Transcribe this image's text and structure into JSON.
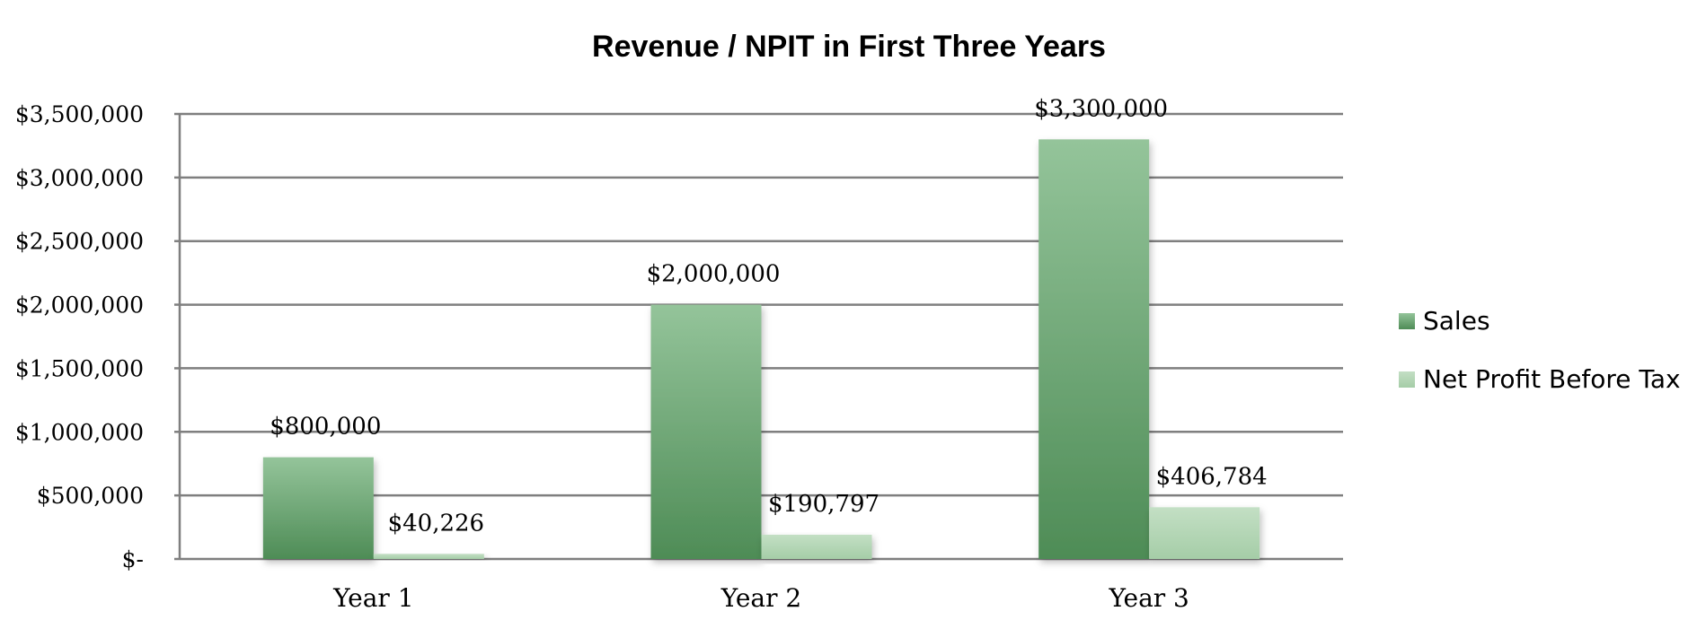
{
  "chart_data": {
    "type": "bar",
    "title": "Revenue / NPIT in First Three Years",
    "categories": [
      "Year 1",
      "Year 2",
      "Year 3"
    ],
    "series": [
      {
        "name": "Sales",
        "values": [
          800000,
          2000000,
          3300000
        ],
        "labels": [
          "$800,000",
          "$2,000,000",
          "$3,300,000"
        ],
        "color_top": "#94c49a",
        "color_bottom": "#4e8c56"
      },
      {
        "name": "Net Profit Before Tax",
        "values": [
          40226,
          190797,
          406784
        ],
        "labels": [
          "$40,226",
          "$190,797",
          "$406,784"
        ],
        "color_top": "#c3dfc4",
        "color_bottom": "#a5cda7"
      }
    ],
    "ylim": [
      0,
      3500000
    ],
    "yticks": [
      0,
      500000,
      1000000,
      1500000,
      2000000,
      2500000,
      3000000,
      3500000
    ],
    "ytick_labels": [
      "$-",
      "$500,000",
      "$1,000,000",
      "$1,500,000",
      "$2,000,000",
      "$2,500,000",
      "$3,000,000",
      "$3,500,000"
    ],
    "grid": true,
    "legend_position": "right",
    "xlabel": "",
    "ylabel": ""
  }
}
